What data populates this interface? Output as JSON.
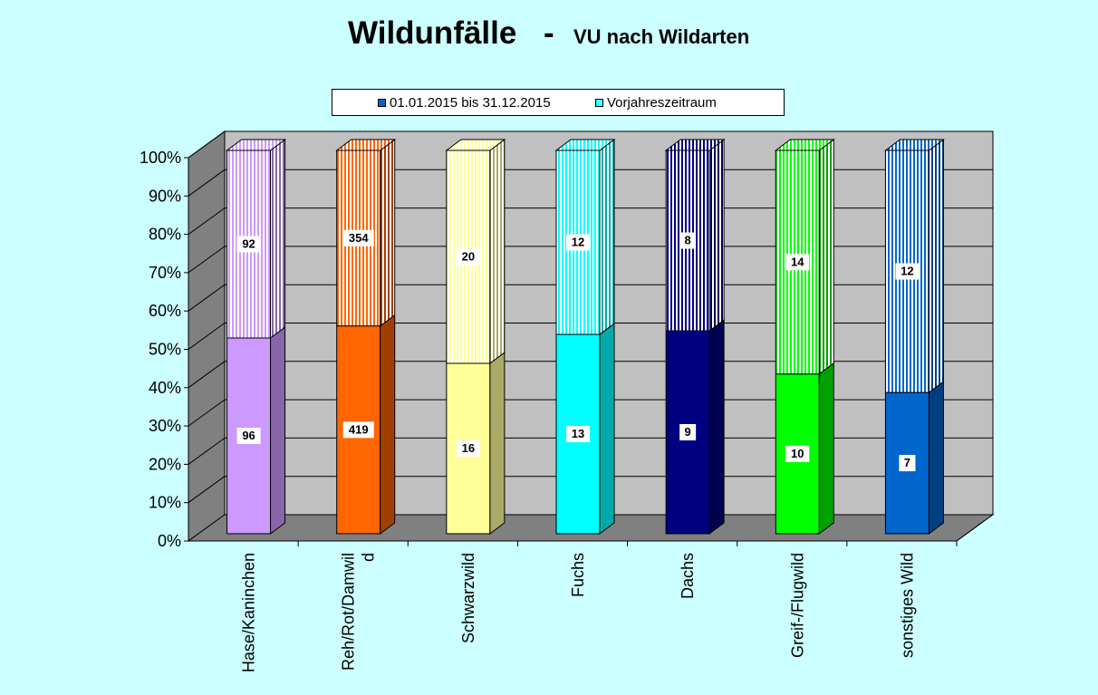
{
  "chart_data": {
    "type": "bar",
    "stacked": "percent",
    "title": "Wildunfälle",
    "title_separator": "-",
    "subtitle": "VU nach Wildarten",
    "categories": [
      "Hase/Kaninchen",
      "Reh/Rot/Damwild",
      "Schwarzwild",
      "Fuchs",
      "Dachs",
      "Greif-/Flugwild",
      "sonstiges Wild"
    ],
    "category_labels": [
      [
        "Hase/Kaninchen"
      ],
      [
        "Reh/Rot/Damwil",
        "d"
      ],
      [
        "Schwarzwild"
      ],
      [
        "Fuchs"
      ],
      [
        "Dachs"
      ],
      [
        "Greif-/Flugwild"
      ],
      [
        "sonstiges Wild"
      ]
    ],
    "series": [
      {
        "name": "01.01.2015 bis 31.12.2015",
        "values": [
          96,
          419,
          16,
          13,
          9,
          10,
          7
        ]
      },
      {
        "name": "Vorjahreszeitraum",
        "values": [
          92,
          354,
          20,
          12,
          8,
          14,
          12
        ]
      }
    ],
    "y_ticks": [
      "0%",
      "10%",
      "20%",
      "30%",
      "40%",
      "50%",
      "60%",
      "70%",
      "80%",
      "90%",
      "100%"
    ],
    "ylim": [
      0,
      100
    ],
    "grid": true,
    "legend_position": "top",
    "colors": {
      "base": [
        "#cc99ff",
        "#ff6600",
        "#ffff99",
        "#00ffff",
        "#000080",
        "#00ff00",
        "#0066cc"
      ],
      "side": [
        "#8866aa",
        "#a04000",
        "#aaaa66",
        "#00aaaa",
        "#000050",
        "#00a000",
        "#004080"
      ],
      "stripe_alt": "#ffffff",
      "legend_swatch_1": "#0066cc",
      "legend_swatch_2": "#00ffff",
      "floor": "#808080",
      "back_wall": "#c0c0c0",
      "side_wall": "#808080",
      "background": "#ccffff"
    }
  }
}
